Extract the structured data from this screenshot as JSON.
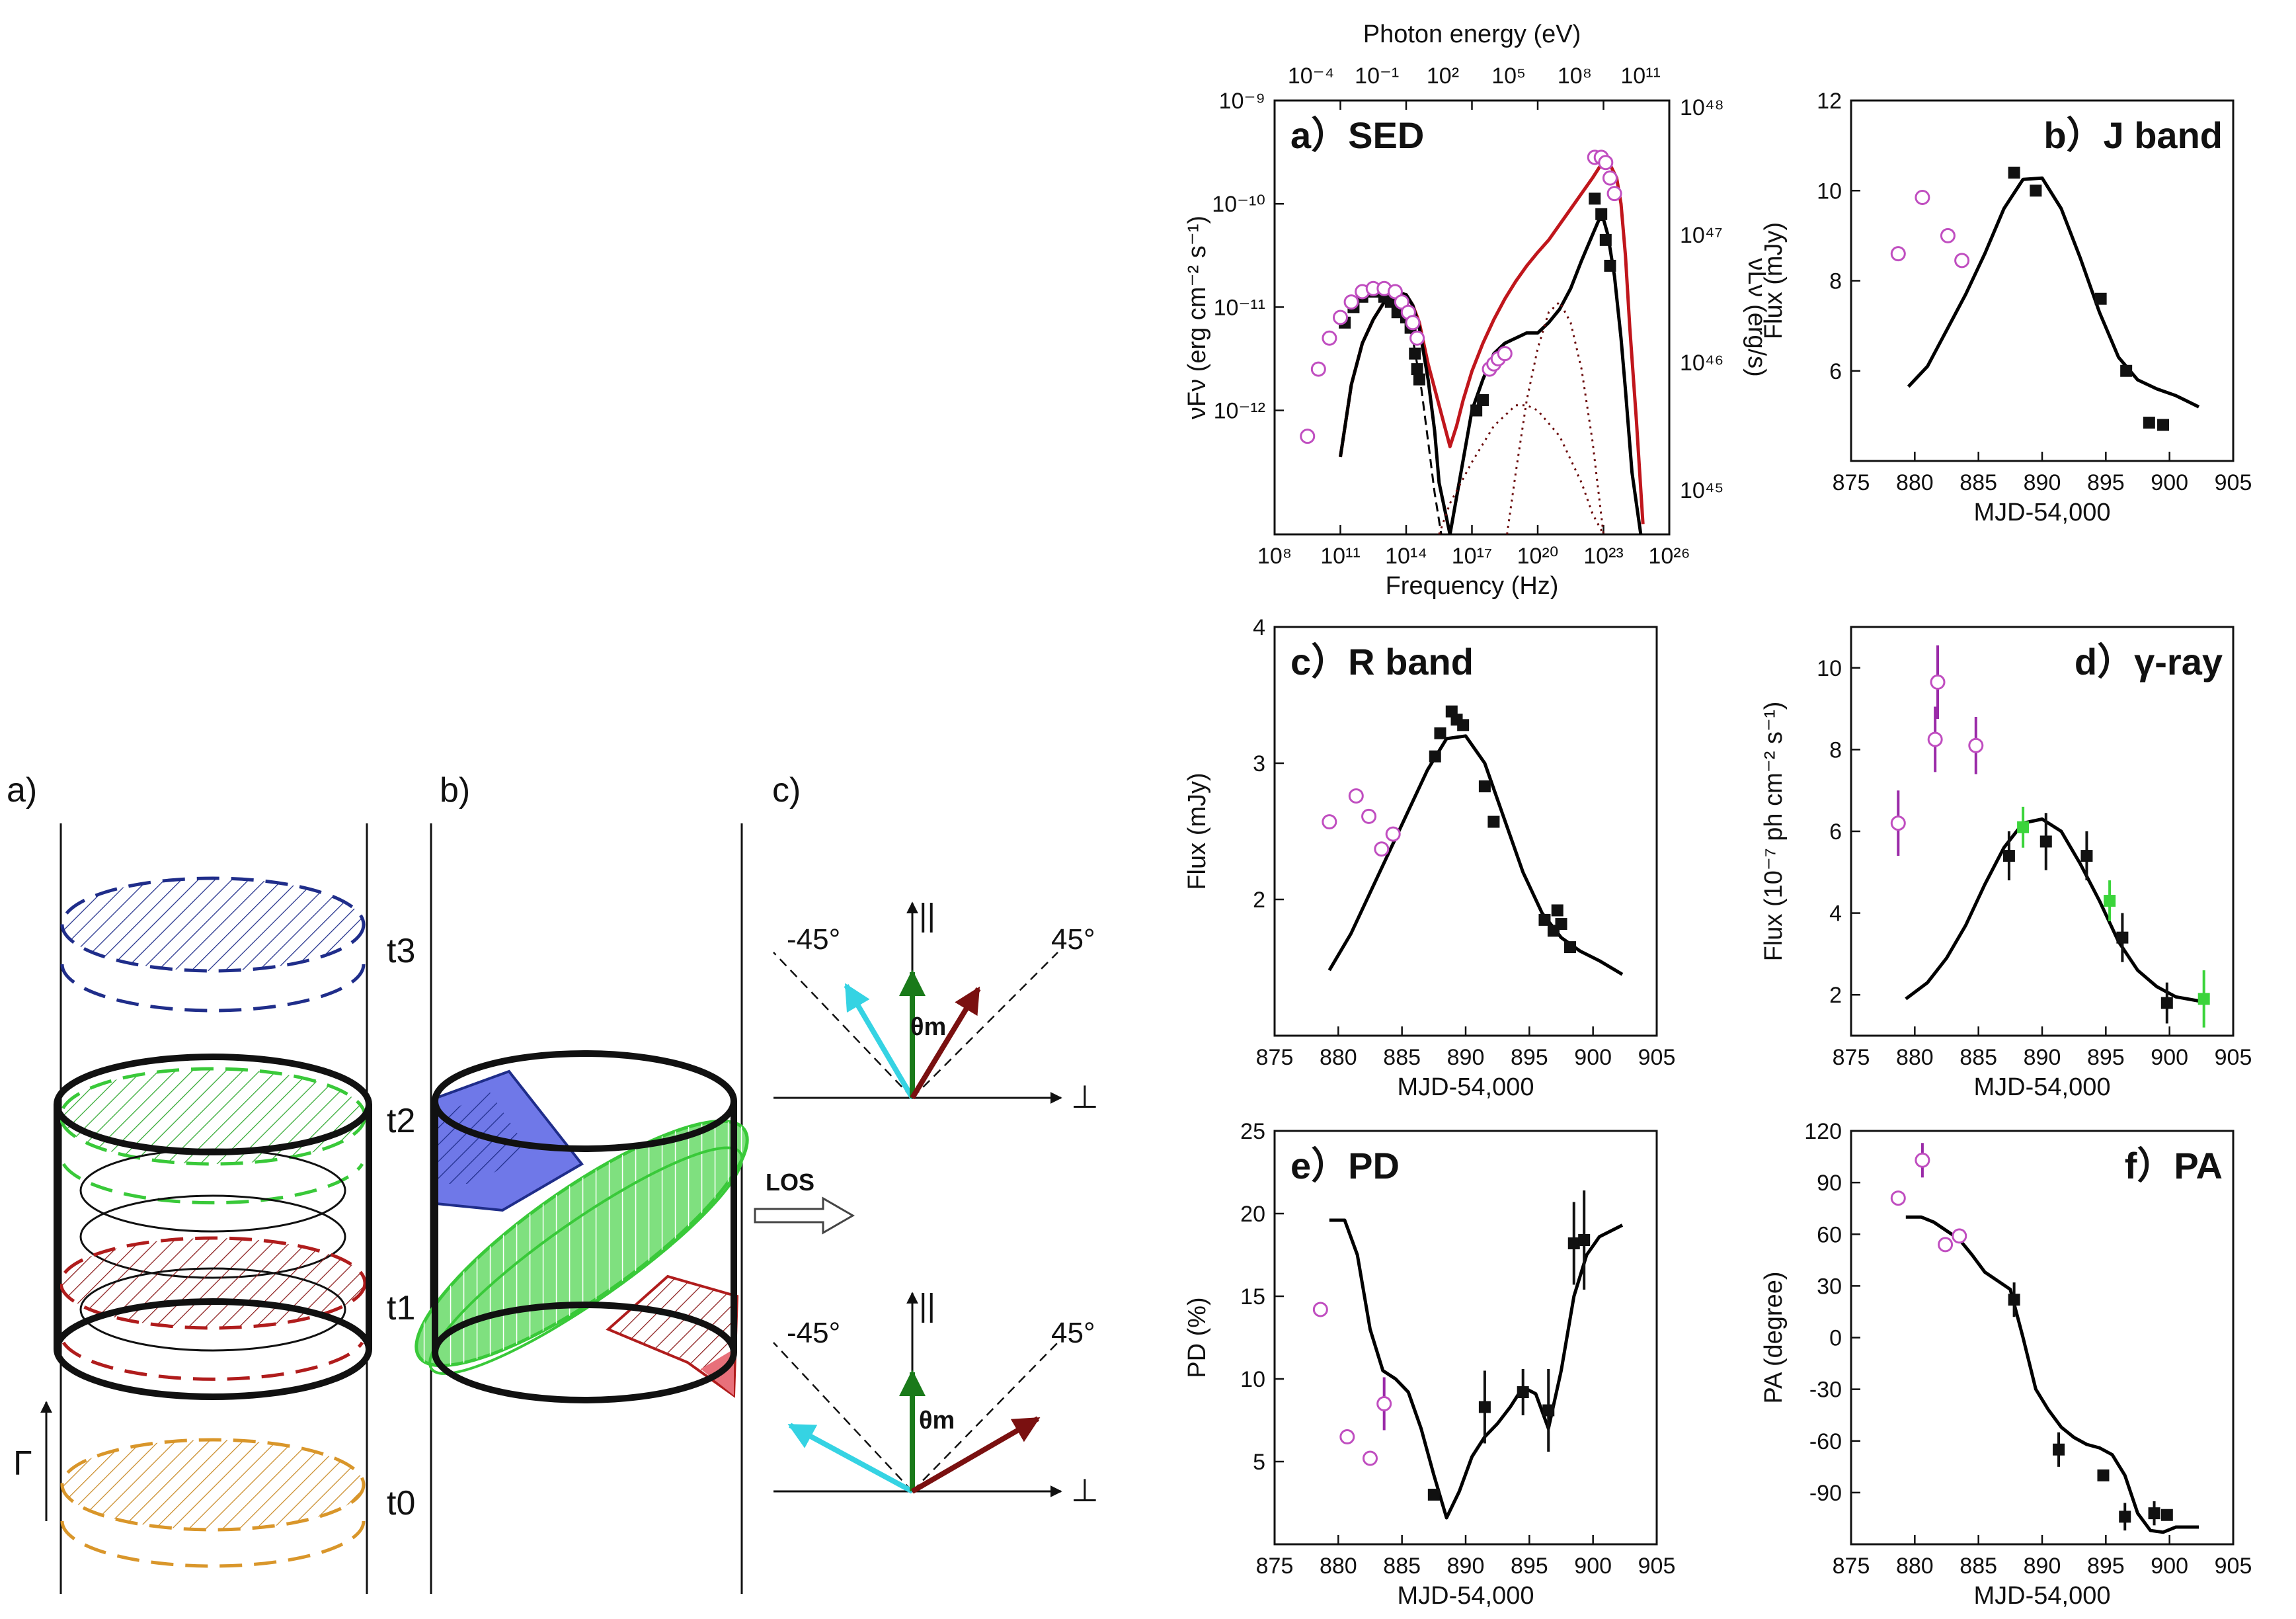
{
  "diagram": {
    "panel_a": {
      "label": "a)",
      "times": [
        "t3",
        "t2",
        "t1",
        "t0"
      ],
      "gamma_label": "Γ"
    },
    "panel_b": {
      "label": "b)",
      "los_label": "LOS"
    },
    "panel_c": {
      "label": "c)",
      "parallel": "||",
      "perp": "⊥",
      "minus45": "-45°",
      "plus45": "45°",
      "theta": "θm"
    },
    "colors": {
      "t3": "#1f2d8a",
      "t2": "#39c939",
      "t1": "#b01c1c",
      "t0": "#d9962a",
      "blue_fill": "#6f78e8",
      "green_fill": "#7fe07f",
      "red_fill": "#e8707a",
      "cyan": "#35d3e3",
      "darkred": "#7a1010",
      "green_arrow": "#1a7a1a"
    }
  },
  "chart_data": [
    {
      "id": "a",
      "type": "scatter",
      "title": "a）SED",
      "xlabel": "Frequency (Hz)",
      "ylabel": "νFν (erg cm⁻² s⁻¹)",
      "ylabel_right": "νLν (erg/s)",
      "top_label": "Photon energy (eV)",
      "xscale": "log10",
      "yscale": "log10",
      "xlim": [
        8,
        26
      ],
      "ylim": [
        -13.2,
        -9
      ],
      "xticks": [
        "10^8",
        "10^11",
        "10^14",
        "10^17",
        "10^20",
        "10^23",
        "10^26"
      ],
      "yticks": [
        "10^-9",
        "10^-10",
        "10^-11",
        "10^-12"
      ],
      "top_ticks": [
        "10^-4",
        "10^-1",
        "10^2",
        "10^5",
        "10^8",
        "10^11"
      ],
      "right_ticks": [
        "10^48",
        "10^47",
        "10^46",
        "10^45"
      ],
      "series": [
        {
          "name": "model (red)",
          "style": "line",
          "color": "#c0161c",
          "x": [
            11.0,
            11.5,
            12.0,
            12.5,
            13.0,
            13.5,
            14.0,
            14.3,
            14.6,
            15.0,
            15.5,
            16.0,
            16.3,
            16.6,
            17.0,
            17.5,
            18.0,
            18.5,
            19.0,
            19.5,
            20.0,
            20.5,
            21.0,
            21.5,
            22.0,
            22.5,
            22.8,
            23.0,
            23.3,
            23.6,
            23.8,
            24.0,
            24.2,
            24.5,
            24.8
          ],
          "y": [
            -12.45,
            -11.75,
            -11.35,
            -11.12,
            -10.95,
            -10.85,
            -10.88,
            -10.98,
            -11.15,
            -11.55,
            -11.95,
            -12.35,
            -12.15,
            -11.9,
            -11.62,
            -11.35,
            -11.12,
            -10.92,
            -10.75,
            -10.6,
            -10.47,
            -10.35,
            -10.2,
            -10.05,
            -9.9,
            -9.75,
            -9.65,
            -9.6,
            -9.62,
            -9.75,
            -10.0,
            -10.5,
            -11.2,
            -12.1,
            -13.1
          ]
        },
        {
          "name": "model (black)",
          "style": "line",
          "color": "#000000",
          "x": [
            11.0,
            11.5,
            12.0,
            12.5,
            13.0,
            13.5,
            14.0,
            14.3,
            14.6,
            15.0,
            15.3,
            15.5,
            16.0,
            17.0,
            17.5,
            18.0,
            18.5,
            19.0,
            19.5,
            20.0,
            20.5,
            21.0,
            21.5,
            22.0,
            22.5,
            22.8,
            23.0,
            23.2,
            23.5,
            23.8,
            24.0,
            24.3,
            24.7
          ],
          "y": [
            -12.45,
            -11.75,
            -11.35,
            -11.12,
            -10.95,
            -10.85,
            -10.88,
            -10.98,
            -11.2,
            -11.7,
            -12.2,
            -12.7,
            -13.2,
            -12.0,
            -11.7,
            -11.45,
            -11.35,
            -11.3,
            -11.25,
            -11.25,
            -11.15,
            -11.02,
            -10.82,
            -10.55,
            -10.3,
            -10.15,
            -10.15,
            -10.3,
            -10.7,
            -11.3,
            -11.8,
            -12.6,
            -13.2
          ]
        },
        {
          "name": "synchrotron (dashed)",
          "style": "dashed",
          "color": "#000000",
          "x": [
            13.8,
            14.3,
            14.7,
            15.0,
            15.3,
            15.6
          ],
          "y": [
            -10.95,
            -11.3,
            -11.8,
            -12.3,
            -12.8,
            -13.2
          ]
        },
        {
          "name": "SSC (dotted)",
          "style": "dotted",
          "color": "#6a0a0a",
          "x": [
            18.6,
            19.0,
            19.5,
            20.0,
            20.5,
            21.0,
            21.5,
            22.0,
            22.5,
            23.0
          ],
          "y": [
            -13.2,
            -12.6,
            -11.9,
            -11.4,
            -11.05,
            -10.95,
            -11.15,
            -11.6,
            -12.3,
            -13.2
          ]
        },
        {
          "name": "EC (dotted)",
          "style": "dotted",
          "color": "#6a0a0a",
          "x": [
            15.5,
            16.0,
            17.0,
            18.0,
            19.0,
            19.5,
            20.0,
            21.0,
            22.0,
            22.5,
            23.0
          ],
          "y": [
            -13.2,
            -12.9,
            -12.5,
            -12.15,
            -11.95,
            -11.95,
            -12.0,
            -12.25,
            -12.7,
            -13.0,
            -13.2
          ]
        },
        {
          "name": "data (filled)",
          "style": "square",
          "color": "#111111",
          "x": [
            11.2,
            11.6,
            12.0,
            12.5,
            13.0,
            13.3,
            13.6,
            14.0,
            14.2,
            14.4,
            14.5,
            14.6,
            17.2,
            17.5,
            22.6,
            22.9,
            23.1,
            23.3
          ],
          "y": [
            -11.15,
            -11.0,
            -10.9,
            -10.85,
            -10.9,
            -10.95,
            -11.05,
            -11.1,
            -11.2,
            -11.45,
            -11.6,
            -11.7,
            -12.0,
            -11.9,
            -9.95,
            -10.1,
            -10.35,
            -10.6
          ]
        },
        {
          "name": "data (open)",
          "style": "circle",
          "color": "#c04ec0",
          "x": [
            9.5,
            10.0,
            10.5,
            11.0,
            11.5,
            12.0,
            12.5,
            13.0,
            13.5,
            13.8,
            14.1,
            14.3,
            14.5,
            17.8,
            18.0,
            18.2,
            18.5,
            22.6,
            22.9,
            23.1,
            23.3,
            23.5
          ],
          "y": [
            -12.25,
            -11.6,
            -11.3,
            -11.1,
            -10.95,
            -10.85,
            -10.82,
            -10.82,
            -10.85,
            -10.95,
            -11.05,
            -11.15,
            -11.3,
            -11.6,
            -11.55,
            -11.5,
            -11.45,
            -9.55,
            -9.55,
            -9.6,
            -9.75,
            -9.9
          ]
        }
      ]
    },
    {
      "id": "b",
      "type": "scatter",
      "title": "b）J band",
      "xlabel": "MJD-54,000",
      "ylabel": "Flux (mJy)",
      "xlim": [
        875,
        905
      ],
      "ylim": [
        4,
        12
      ],
      "xticks": [
        "875",
        "880",
        "885",
        "890",
        "895",
        "900",
        "905"
      ],
      "yticks": [
        "6",
        "8",
        "10",
        "12"
      ],
      "series": [
        {
          "name": "model",
          "style": "line",
          "color": "#000000",
          "x": [
            879.5,
            881,
            882.5,
            884,
            885.5,
            887,
            888.5,
            890,
            891.5,
            893,
            894.5,
            896,
            897.5,
            899,
            900.5,
            902.3
          ],
          "y": [
            5.65,
            6.1,
            6.9,
            7.7,
            8.6,
            9.6,
            10.25,
            10.28,
            9.6,
            8.5,
            7.3,
            6.3,
            5.8,
            5.6,
            5.45,
            5.2
          ]
        },
        {
          "name": "filled",
          "style": "square",
          "color": "#111111",
          "x": [
            887.8,
            889.5,
            894.6,
            896.6,
            898.4,
            899.5
          ],
          "y": [
            10.4,
            10.0,
            7.6,
            6.0,
            4.85,
            4.8
          ]
        },
        {
          "name": "open",
          "style": "circle",
          "color": "#c04ec0",
          "x": [
            878.7,
            880.6,
            882.6,
            883.7
          ],
          "y": [
            8.6,
            9.85,
            9.0,
            8.45
          ]
        }
      ]
    },
    {
      "id": "c",
      "type": "scatter",
      "title": "c）R band",
      "xlabel": "MJD-54,000",
      "ylabel": "Flux (mJy)",
      "xlim": [
        875,
        905
      ],
      "ylim": [
        1,
        4
      ],
      "xticks": [
        "875",
        "880",
        "885",
        "890",
        "895",
        "900",
        "905"
      ],
      "yticks": [
        "2",
        "3",
        "4"
      ],
      "series": [
        {
          "name": "model",
          "style": "line",
          "color": "#000000",
          "x": [
            879.3,
            881,
            882.5,
            884,
            885.5,
            887,
            888.5,
            890,
            891.5,
            893,
            894.5,
            896,
            897.5,
            899,
            900.5,
            902.3
          ],
          "y": [
            1.48,
            1.75,
            2.05,
            2.35,
            2.65,
            2.95,
            3.18,
            3.2,
            3.0,
            2.6,
            2.2,
            1.9,
            1.72,
            1.62,
            1.55,
            1.45
          ]
        },
        {
          "name": "filled",
          "style": "square",
          "color": "#111111",
          "x": [
            887.6,
            888.0,
            888.9,
            889.3,
            889.8,
            891.5,
            892.2,
            896.2,
            896.9,
            897.2,
            897.5,
            898.2
          ],
          "y": [
            3.05,
            3.22,
            3.38,
            3.32,
            3.28,
            2.83,
            2.57,
            1.85,
            1.77,
            1.92,
            1.82,
            1.65
          ]
        },
        {
          "name": "open",
          "style": "circle",
          "color": "#c04ec0",
          "x": [
            879.3,
            881.4,
            882.4,
            883.4,
            884.3
          ],
          "y": [
            2.57,
            2.76,
            2.61,
            2.37,
            2.48
          ]
        }
      ]
    },
    {
      "id": "d",
      "type": "scatter",
      "title": "d）γ-ray",
      "xlabel": "MJD-54,000",
      "ylabel": "Flux (10⁻⁷ ph cm⁻² s⁻¹)",
      "xlim": [
        875,
        905
      ],
      "ylim": [
        1,
        11
      ],
      "xticks": [
        "875",
        "880",
        "885",
        "890",
        "895",
        "900",
        "905"
      ],
      "yticks": [
        "2",
        "4",
        "6",
        "8",
        "10"
      ],
      "series": [
        {
          "name": "model",
          "style": "line",
          "color": "#000000",
          "x": [
            879.3,
            881,
            882.5,
            884,
            885.5,
            887,
            888.5,
            890,
            891.5,
            893,
            894.5,
            896,
            897.5,
            899,
            900.5,
            902.3
          ],
          "y": [
            1.9,
            2.3,
            2.9,
            3.7,
            4.7,
            5.6,
            6.2,
            6.3,
            6.0,
            5.2,
            4.3,
            3.3,
            2.6,
            2.2,
            1.95,
            1.85
          ]
        },
        {
          "name": "filled",
          "style": "square",
          "color": "#111111",
          "x": [
            887.4,
            890.3,
            893.5,
            896.3,
            899.8
          ],
          "y": [
            5.4,
            5.75,
            5.4,
            3.4,
            1.8
          ],
          "err": [
            0.6,
            0.7,
            0.6,
            0.6,
            0.5
          ]
        },
        {
          "name": "green",
          "style": "square",
          "color": "#3bd43b",
          "x": [
            888.5,
            895.3,
            902.7
          ],
          "y": [
            6.1,
            4.3,
            1.9
          ],
          "err": [
            0.5,
            0.5,
            0.7
          ]
        },
        {
          "name": "open",
          "style": "circle",
          "color": "#c04ec0",
          "x": [
            878.7,
            881.6,
            881.8,
            884.8
          ],
          "y": [
            6.2,
            8.25,
            9.65,
            8.1
          ],
          "err": [
            0.8,
            0.8,
            0.9,
            0.7
          ]
        }
      ]
    },
    {
      "id": "e",
      "type": "scatter",
      "title": "e）PD",
      "xlabel": "MJD-54,000",
      "ylabel": "PD (%)",
      "xlim": [
        875,
        905
      ],
      "ylim": [
        0,
        25
      ],
      "xticks": [
        "875",
        "880",
        "885",
        "890",
        "895",
        "900",
        "905"
      ],
      "yticks": [
        "5",
        "10",
        "15",
        "20",
        "25"
      ],
      "series": [
        {
          "name": "model",
          "style": "line",
          "color": "#000000",
          "x": [
            879.3,
            880.5,
            881.5,
            882.5,
            883.5,
            884.5,
            885.5,
            886.5,
            887.5,
            888.5,
            889.5,
            890.5,
            891.5,
            892.5,
            893.5,
            894.5,
            895.5,
            896.5,
            897.5,
            898.5,
            899.5,
            900.5,
            902.3
          ],
          "y": [
            19.6,
            19.6,
            17.5,
            13,
            10.5,
            10,
            9.2,
            7,
            4.2,
            1.6,
            3.2,
            5.3,
            6.5,
            7.3,
            8.3,
            9.5,
            9.1,
            7.0,
            10.5,
            15,
            17.5,
            18.6,
            19.3
          ]
        },
        {
          "name": "filled",
          "style": "square",
          "color": "#111111",
          "x": [
            887.5,
            891.5,
            894.5,
            896.5,
            898.5,
            899.3
          ],
          "y": [
            3.0,
            8.3,
            9.2,
            8.1,
            18.2,
            18.4
          ],
          "err": [
            0,
            2.2,
            1.4,
            2.5,
            2.5,
            3.0
          ]
        },
        {
          "name": "open",
          "style": "circle",
          "color": "#c04ec0",
          "x": [
            878.6,
            880.7,
            882.5,
            883.6
          ],
          "y": [
            14.2,
            6.5,
            5.2,
            8.5
          ],
          "err": [
            0,
            0,
            0,
            1.6
          ]
        }
      ]
    },
    {
      "id": "f",
      "type": "scatter",
      "title": "f）PA",
      "xlabel": "MJD-54,000",
      "ylabel": "PA (degree)",
      "xlim": [
        875,
        905
      ],
      "ylim": [
        -120,
        120
      ],
      "xticks": [
        "875",
        "880",
        "885",
        "890",
        "895",
        "900",
        "905"
      ],
      "yticks": [
        "120",
        "90",
        "60",
        "30",
        "0",
        "-30",
        "-60",
        "-90"
      ],
      "series": [
        {
          "name": "model",
          "style": "line",
          "color": "#000000",
          "x": [
            879.3,
            880.5,
            881.5,
            882.5,
            883.5,
            884.5,
            885.5,
            886.5,
            887.5,
            888.5,
            889.5,
            890.5,
            891.5,
            892.5,
            893.5,
            894.5,
            895.5,
            896.5,
            897.5,
            898.5,
            899.5,
            900.5,
            902.3
          ],
          "y": [
            70,
            70,
            67,
            62,
            57,
            48,
            38,
            33,
            28,
            0,
            -30,
            -42,
            -52,
            -58,
            -62,
            -64,
            -68,
            -80,
            -102,
            -112,
            -113,
            -110,
            -110
          ]
        },
        {
          "name": "filled",
          "style": "square",
          "color": "#111111",
          "x": [
            887.8,
            891.3,
            894.8,
            896.5,
            898.8,
            899.8
          ],
          "y": [
            22,
            -65,
            -80,
            -104,
            -102,
            -103
          ],
          "err": [
            10,
            10,
            3,
            8,
            7,
            3
          ]
        },
        {
          "name": "open",
          "style": "circle",
          "color": "#c04ec0",
          "x": [
            878.7,
            880.6,
            882.4,
            883.5
          ],
          "y": [
            81,
            103,
            54,
            59
          ],
          "err": [
            0,
            10,
            0,
            0
          ]
        }
      ]
    }
  ]
}
